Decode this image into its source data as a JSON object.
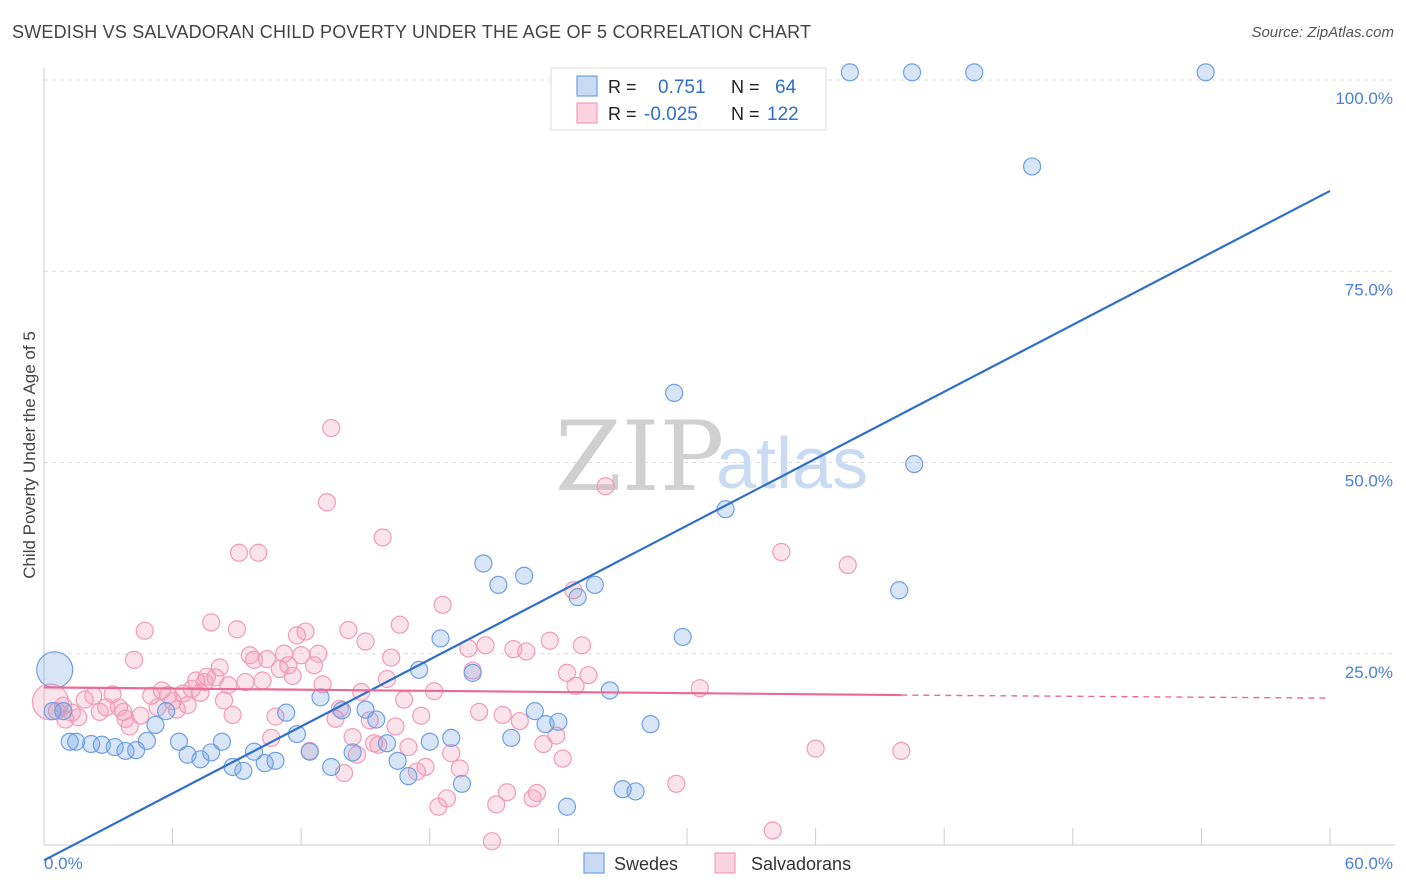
{
  "title": "SWEDISH VS SALVADORAN CHILD POVERTY UNDER THE AGE OF 5 CORRELATION CHART",
  "source": "Source: ZipAtlas.com",
  "watermark": {
    "zip": "ZIP",
    "atlas": "atlas"
  },
  "legend_box": {
    "rows": [
      {
        "r_label": "R =",
        "r_value": "0.751",
        "n_label": "N =",
        "n_value": "64",
        "color": "#6fa0e3"
      },
      {
        "r_label": "R =",
        "r_value": "-0.025",
        "n_label": "N =",
        "n_value": "122",
        "color": "#f29bb8"
      }
    ]
  },
  "chart_data": {
    "type": "scatter",
    "title": "SWEDISH VS SALVADORAN CHILD POVERTY UNDER THE AGE OF 5 CORRELATION CHART",
    "xlabel": "",
    "ylabel": "Child Poverty Under the Age of 5",
    "xlim": [
      0,
      60
    ],
    "ylim": [
      0,
      100
    ],
    "x_tick_labels": [
      "0.0%",
      "60.0%"
    ],
    "y_tick_labels": [
      "100.0%",
      "75.0%",
      "50.0%",
      "25.0%"
    ],
    "y_tick_values": [
      100,
      75,
      50,
      25
    ],
    "legend": [
      "Swedes",
      "Salvadorans"
    ],
    "series": [
      {
        "name": "Swedes",
        "color": "#6fa0e3",
        "trend": {
          "x": [
            0,
            60
          ],
          "y": [
            -2.0,
            85.5
          ]
        },
        "points": [
          {
            "x": 0.5,
            "y": 22.9,
            "big": true
          },
          {
            "x": 0.4,
            "y": 17.5
          },
          {
            "x": 0.9,
            "y": 17.5
          },
          {
            "x": 1.2,
            "y": 13.5
          },
          {
            "x": 1.5,
            "y": 13.5
          },
          {
            "x": 2.2,
            "y": 13.2
          },
          {
            "x": 2.7,
            "y": 13.1
          },
          {
            "x": 3.3,
            "y": 12.8
          },
          {
            "x": 3.8,
            "y": 12.3
          },
          {
            "x": 4.3,
            "y": 12.4
          },
          {
            "x": 4.8,
            "y": 13.6
          },
          {
            "x": 5.2,
            "y": 15.7
          },
          {
            "x": 5.7,
            "y": 17.5
          },
          {
            "x": 6.3,
            "y": 13.5
          },
          {
            "x": 6.7,
            "y": 11.8
          },
          {
            "x": 7.3,
            "y": 11.2
          },
          {
            "x": 7.8,
            "y": 12.1
          },
          {
            "x": 8.3,
            "y": 13.5
          },
          {
            "x": 8.8,
            "y": 10.2
          },
          {
            "x": 9.3,
            "y": 9.7
          },
          {
            "x": 9.8,
            "y": 12.2
          },
          {
            "x": 10.3,
            "y": 10.7
          },
          {
            "x": 10.8,
            "y": 11.0
          },
          {
            "x": 11.3,
            "y": 17.3
          },
          {
            "x": 11.8,
            "y": 14.5
          },
          {
            "x": 12.4,
            "y": 12.2
          },
          {
            "x": 12.9,
            "y": 19.3
          },
          {
            "x": 13.4,
            "y": 10.2
          },
          {
            "x": 13.9,
            "y": 17.6
          },
          {
            "x": 14.4,
            "y": 12.1
          },
          {
            "x": 15.0,
            "y": 17.7
          },
          {
            "x": 15.5,
            "y": 16.4
          },
          {
            "x": 16.0,
            "y": 13.3
          },
          {
            "x": 16.5,
            "y": 11.0
          },
          {
            "x": 17.0,
            "y": 9.0
          },
          {
            "x": 17.5,
            "y": 22.9
          },
          {
            "x": 18.0,
            "y": 13.5
          },
          {
            "x": 18.5,
            "y": 27.0
          },
          {
            "x": 19.0,
            "y": 14.0
          },
          {
            "x": 19.5,
            "y": 8.0
          },
          {
            "x": 20.0,
            "y": 22.5
          },
          {
            "x": 20.5,
            "y": 36.8
          },
          {
            "x": 21.2,
            "y": 34.0
          },
          {
            "x": 21.8,
            "y": 14.0
          },
          {
            "x": 22.4,
            "y": 35.2
          },
          {
            "x": 22.9,
            "y": 17.5
          },
          {
            "x": 23.4,
            "y": 15.8
          },
          {
            "x": 24.0,
            "y": 16.1
          },
          {
            "x": 24.4,
            "y": 5.0
          },
          {
            "x": 24.9,
            "y": 32.4
          },
          {
            "x": 25.7,
            "y": 34.0
          },
          {
            "x": 26.4,
            "y": 20.2
          },
          {
            "x": 27.0,
            "y": 7.3
          },
          {
            "x": 27.6,
            "y": 7.0
          },
          {
            "x": 28.3,
            "y": 15.8
          },
          {
            "x": 29.4,
            "y": 59.1
          },
          {
            "x": 29.8,
            "y": 27.2
          },
          {
            "x": 31.8,
            "y": 43.9
          },
          {
            "x": 39.9,
            "y": 33.3
          },
          {
            "x": 40.6,
            "y": 49.8
          },
          {
            "x": 37.6,
            "y": 101.0
          },
          {
            "x": 40.5,
            "y": 101.0
          },
          {
            "x": 43.4,
            "y": 101.0
          },
          {
            "x": 46.1,
            "y": 88.7
          },
          {
            "x": 54.2,
            "y": 101.0
          }
        ]
      },
      {
        "name": "Salvadorans",
        "color": "#f29bb8",
        "trend": {
          "x": [
            0,
            40,
            60
          ],
          "y": [
            20.6,
            19.6,
            19.2
          ],
          "dashed_from_x": 40
        },
        "points": [
          {
            "x": 0.3,
            "y": 18.7,
            "big": true
          },
          {
            "x": 0.6,
            "y": 17.5
          },
          {
            "x": 0.9,
            "y": 18.2
          },
          {
            "x": 1.0,
            "y": 16.4
          },
          {
            "x": 1.3,
            "y": 17.3
          },
          {
            "x": 1.6,
            "y": 16.7
          },
          {
            "x": 1.9,
            "y": 19.0
          },
          {
            "x": 2.3,
            "y": 19.5
          },
          {
            "x": 2.6,
            "y": 17.4
          },
          {
            "x": 2.9,
            "y": 18.0
          },
          {
            "x": 3.2,
            "y": 19.7
          },
          {
            "x": 3.5,
            "y": 18.0
          },
          {
            "x": 3.7,
            "y": 17.4
          },
          {
            "x": 3.8,
            "y": 16.5
          },
          {
            "x": 4.0,
            "y": 15.5
          },
          {
            "x": 4.2,
            "y": 24.2
          },
          {
            "x": 4.5,
            "y": 16.9
          },
          {
            "x": 4.7,
            "y": 28.0
          },
          {
            "x": 5.0,
            "y": 19.5
          },
          {
            "x": 5.3,
            "y": 18.0
          },
          {
            "x": 5.5,
            "y": 20.2
          },
          {
            "x": 5.8,
            "y": 19.6
          },
          {
            "x": 6.0,
            "y": 18.8
          },
          {
            "x": 6.2,
            "y": 17.7
          },
          {
            "x": 6.5,
            "y": 19.8
          },
          {
            "x": 6.7,
            "y": 18.3
          },
          {
            "x": 6.9,
            "y": 20.4
          },
          {
            "x": 7.1,
            "y": 21.5
          },
          {
            "x": 7.3,
            "y": 19.9
          },
          {
            "x": 7.5,
            "y": 21.3
          },
          {
            "x": 7.6,
            "y": 22.0
          },
          {
            "x": 7.8,
            "y": 29.1
          },
          {
            "x": 8.0,
            "y": 21.9
          },
          {
            "x": 8.2,
            "y": 23.2
          },
          {
            "x": 8.4,
            "y": 18.9
          },
          {
            "x": 8.6,
            "y": 20.9
          },
          {
            "x": 8.8,
            "y": 17.0
          },
          {
            "x": 9.0,
            "y": 28.2
          },
          {
            "x": 9.1,
            "y": 38.2
          },
          {
            "x": 9.4,
            "y": 21.3
          },
          {
            "x": 9.6,
            "y": 24.8
          },
          {
            "x": 9.8,
            "y": 24.2
          },
          {
            "x": 10.0,
            "y": 38.2
          },
          {
            "x": 10.2,
            "y": 21.5
          },
          {
            "x": 10.4,
            "y": 24.3
          },
          {
            "x": 10.6,
            "y": 14.0
          },
          {
            "x": 10.8,
            "y": 16.8
          },
          {
            "x": 11.0,
            "y": 23.0
          },
          {
            "x": 11.2,
            "y": 25.0
          },
          {
            "x": 11.4,
            "y": 23.5
          },
          {
            "x": 11.6,
            "y": 22.1
          },
          {
            "x": 11.8,
            "y": 27.4
          },
          {
            "x": 12.0,
            "y": 24.8
          },
          {
            "x": 12.2,
            "y": 27.9
          },
          {
            "x": 12.4,
            "y": 12.3
          },
          {
            "x": 12.6,
            "y": 23.5
          },
          {
            "x": 12.8,
            "y": 25.0
          },
          {
            "x": 13.0,
            "y": 21.0
          },
          {
            "x": 13.2,
            "y": 44.8
          },
          {
            "x": 13.4,
            "y": 54.5
          },
          {
            "x": 13.6,
            "y": 16.5
          },
          {
            "x": 13.8,
            "y": 17.8
          },
          {
            "x": 14.0,
            "y": 9.4
          },
          {
            "x": 14.2,
            "y": 28.1
          },
          {
            "x": 14.4,
            "y": 14.1
          },
          {
            "x": 14.6,
            "y": 11.8
          },
          {
            "x": 14.8,
            "y": 20.0
          },
          {
            "x": 15.0,
            "y": 26.6
          },
          {
            "x": 15.2,
            "y": 16.3
          },
          {
            "x": 15.4,
            "y": 13.3
          },
          {
            "x": 15.6,
            "y": 13.1
          },
          {
            "x": 15.8,
            "y": 40.2
          },
          {
            "x": 16.0,
            "y": 21.7
          },
          {
            "x": 16.2,
            "y": 24.5
          },
          {
            "x": 16.4,
            "y": 15.5
          },
          {
            "x": 16.6,
            "y": 28.8
          },
          {
            "x": 16.8,
            "y": 19.0
          },
          {
            "x": 17.0,
            "y": 12.8
          },
          {
            "x": 17.4,
            "y": 9.6
          },
          {
            "x": 17.6,
            "y": 16.9
          },
          {
            "x": 17.8,
            "y": 10.2
          },
          {
            "x": 18.2,
            "y": 20.1
          },
          {
            "x": 18.4,
            "y": 5.0
          },
          {
            "x": 18.6,
            "y": 31.4
          },
          {
            "x": 18.8,
            "y": 6.1
          },
          {
            "x": 19.0,
            "y": 12.0
          },
          {
            "x": 19.4,
            "y": 10.0
          },
          {
            "x": 19.8,
            "y": 25.7
          },
          {
            "x": 20.0,
            "y": 22.8
          },
          {
            "x": 20.3,
            "y": 17.4
          },
          {
            "x": 20.6,
            "y": 26.1
          },
          {
            "x": 20.9,
            "y": 0.5
          },
          {
            "x": 21.1,
            "y": 5.3
          },
          {
            "x": 21.4,
            "y": 17.0
          },
          {
            "x": 21.6,
            "y": 6.9
          },
          {
            "x": 21.9,
            "y": 25.6
          },
          {
            "x": 22.2,
            "y": 16.2
          },
          {
            "x": 22.5,
            "y": 25.3
          },
          {
            "x": 22.8,
            "y": 6.1
          },
          {
            "x": 23.0,
            "y": 6.8
          },
          {
            "x": 23.3,
            "y": 13.2
          },
          {
            "x": 23.6,
            "y": 26.7
          },
          {
            "x": 23.9,
            "y": 14.3
          },
          {
            "x": 24.2,
            "y": 11.3
          },
          {
            "x": 24.4,
            "y": 22.5
          },
          {
            "x": 24.7,
            "y": 33.3
          },
          {
            "x": 24.8,
            "y": 20.8
          },
          {
            "x": 25.1,
            "y": 26.1
          },
          {
            "x": 25.4,
            "y": 22.2
          },
          {
            "x": 26.2,
            "y": 46.9
          },
          {
            "x": 29.5,
            "y": 8.0
          },
          {
            "x": 30.6,
            "y": 20.5
          },
          {
            "x": 34.0,
            "y": 1.9
          },
          {
            "x": 34.4,
            "y": 38.3
          },
          {
            "x": 36.0,
            "y": 12.6
          },
          {
            "x": 37.5,
            "y": 36.6
          },
          {
            "x": 40.0,
            "y": 12.3
          }
        ]
      }
    ]
  }
}
